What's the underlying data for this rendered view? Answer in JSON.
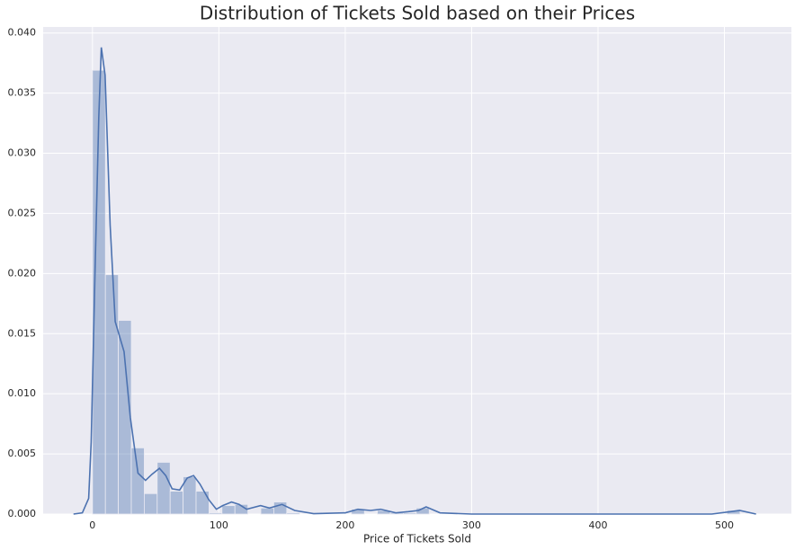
{
  "chart_data": {
    "type": "histogram",
    "title": "Distribution of Tickets Sold based on their Prices",
    "x_label": "Price of Tickets Sold",
    "bins": [
      0,
      10.25,
      20.49,
      30.74,
      40.99,
      51.23,
      61.48,
      71.73,
      81.97,
      92.22,
      102.47,
      112.71,
      122.96,
      133.21,
      143.45,
      153.7,
      163.95,
      174.19,
      184.44,
      194.69,
      204.93,
      215.18,
      225.43,
      235.67,
      245.92,
      256.17,
      266.41,
      276.66,
      286.91,
      297.15,
      307.4,
      317.65,
      327.89,
      338.14,
      348.39,
      358.63,
      368.88,
      379.13,
      389.37,
      399.62,
      409.87,
      420.11,
      430.36,
      440.61,
      450.85,
      461.1,
      471.35,
      481.59,
      491.84,
      502.09,
      512.33
    ],
    "counts": [
      0.0369,
      0.0199,
      0.0161,
      0.0055,
      0.0017,
      0.0043,
      0.0019,
      0.0031,
      0.0019,
      0.0001,
      0.0007,
      0.0008,
      0,
      0.0005,
      0.001,
      0.0001,
      0,
      0,
      0,
      0,
      0.0004,
      0,
      0.0003,
      0.0001,
      0.0001,
      0.0005,
      0,
      0,
      0,
      0,
      0,
      0,
      0,
      0,
      0,
      0,
      0,
      0,
      0,
      0,
      0,
      0,
      0,
      0,
      0,
      0,
      0,
      0,
      0,
      0.0003
    ],
    "color": "#4c72b0",
    "kde": {
      "x": [
        -15,
        -8,
        -3,
        -1,
        2,
        5,
        7,
        10,
        14,
        18,
        25,
        30,
        36,
        42,
        47,
        53,
        58,
        63,
        69,
        75,
        80,
        85,
        92,
        98,
        103,
        110,
        116,
        122,
        133,
        140,
        150,
        160,
        175,
        200,
        210,
        220,
        228,
        240,
        250,
        258,
        264,
        275,
        300,
        490,
        505,
        512,
        525
      ],
      "y": [
        0,
        0.0001,
        0.0013,
        0.006,
        0.02,
        0.033,
        0.0388,
        0.0365,
        0.024,
        0.016,
        0.0135,
        0.008,
        0.0034,
        0.0028,
        0.0033,
        0.0038,
        0.0032,
        0.0021,
        0.002,
        0.003,
        0.0032,
        0.0025,
        0.0012,
        0.0004,
        0.0007,
        0.001,
        0.0008,
        0.0004,
        0.0007,
        0.0005,
        0.0008,
        0.0003,
        3e-05,
        0.0001,
        0.0004,
        0.0003,
        0.0004,
        0.0001,
        0.0002,
        0.0003,
        0.0006,
        0.0001,
        0,
        0,
        0.0002,
        0.0003,
        0
      ]
    },
    "xlim": [
      -39,
      553
    ],
    "ylim": [
      0,
      0.0405
    ],
    "xticks": [
      0,
      100,
      200,
      300,
      400,
      500
    ],
    "yticks": [
      {
        "value": 0,
        "label": "0.000"
      },
      {
        "value": 0.005,
        "label": "0.005"
      },
      {
        "value": 0.01,
        "label": "0.010"
      },
      {
        "value": 0.015,
        "label": "0.015"
      },
      {
        "value": 0.02,
        "label": "0.020"
      },
      {
        "value": 0.025,
        "label": "0.025"
      },
      {
        "value": 0.03,
        "label": "0.030"
      },
      {
        "value": 0.035,
        "label": "0.035"
      },
      {
        "value": 0.04,
        "label": "0.040"
      }
    ],
    "grid": true
  }
}
